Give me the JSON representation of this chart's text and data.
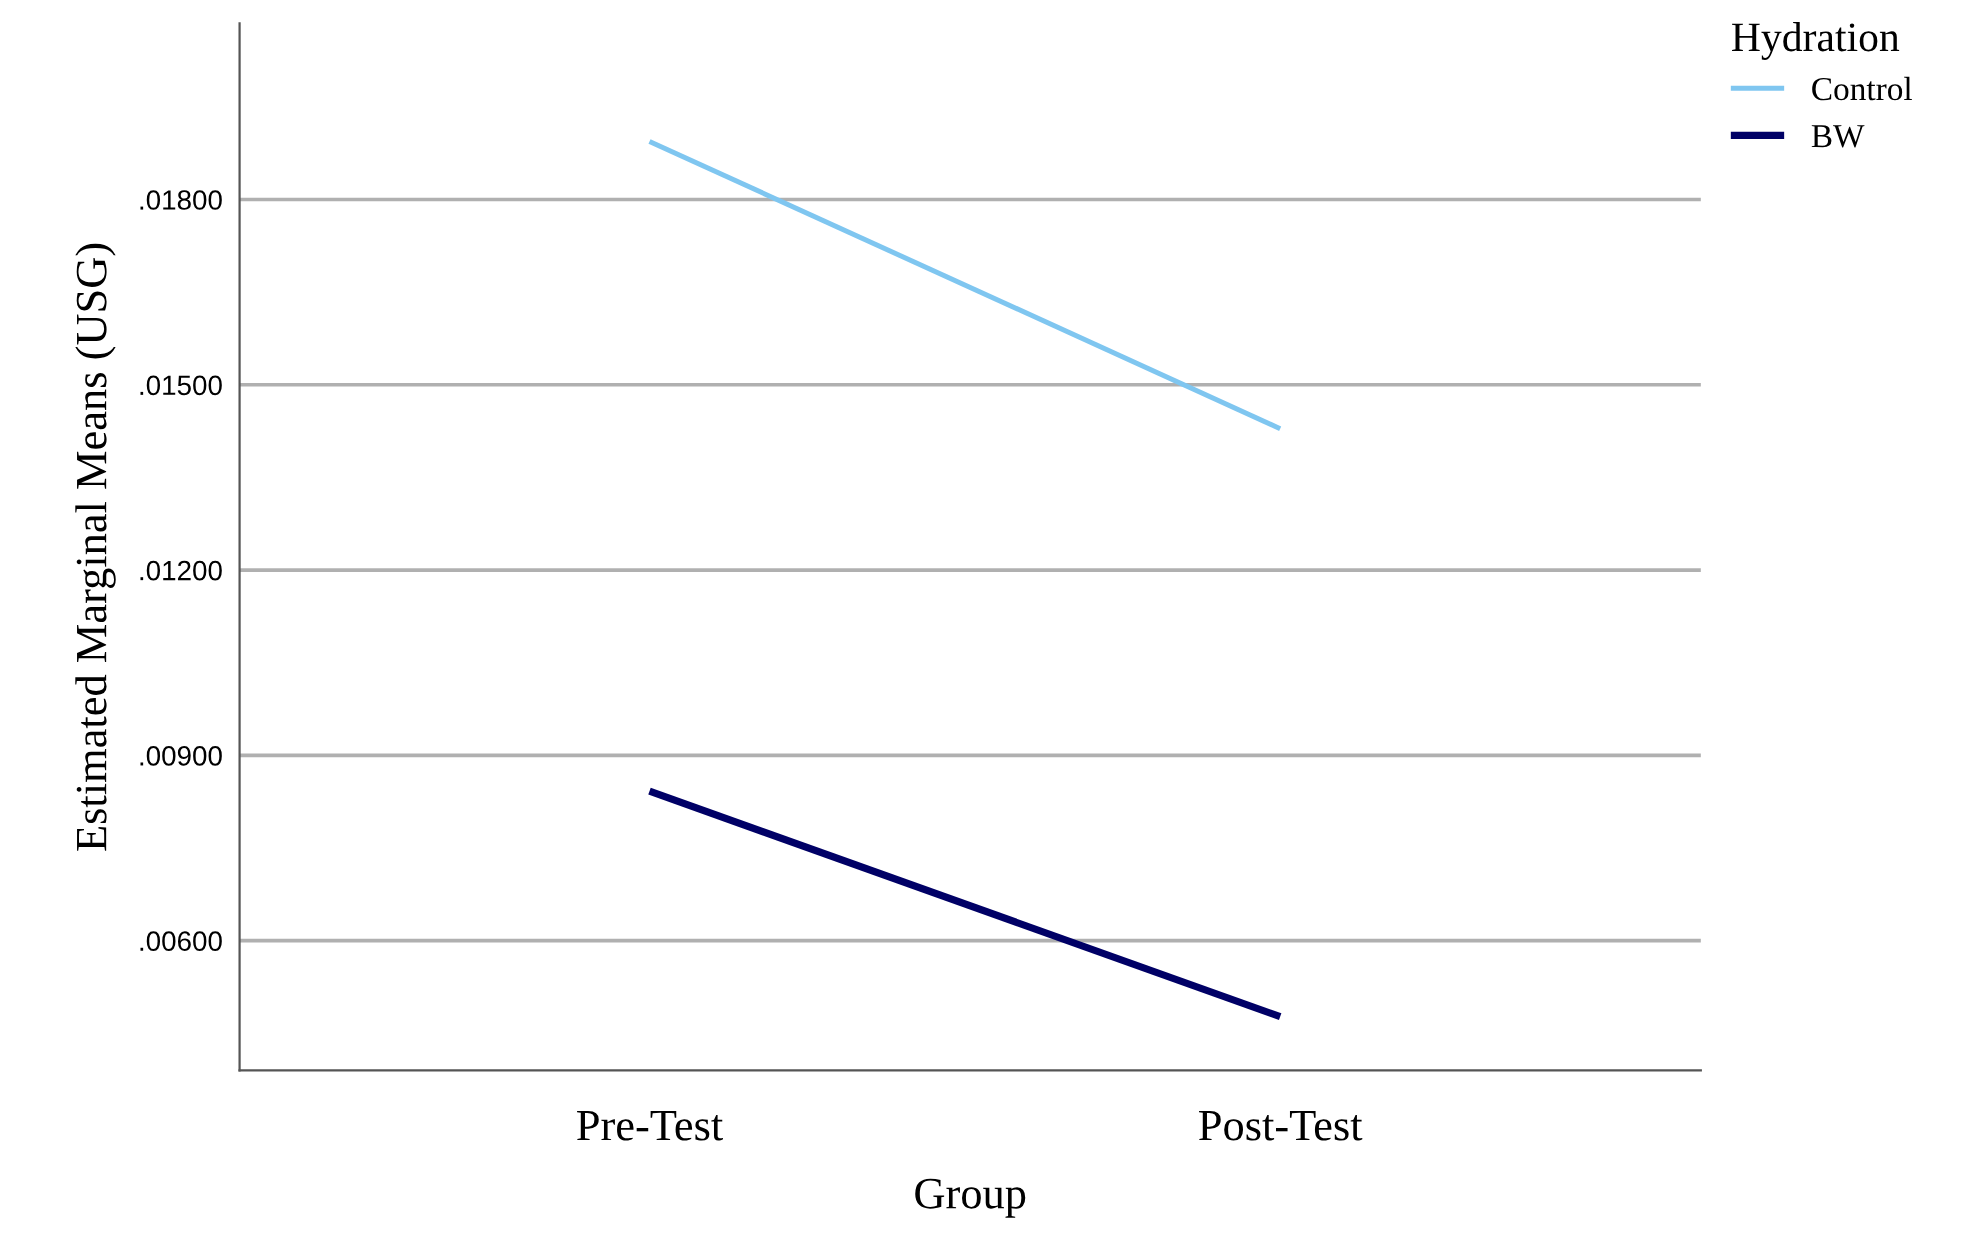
{
  "chart_data": {
    "type": "line",
    "xlabel": "Group",
    "ylabel": "Estimated Marginal Means (USG)",
    "legend_title": "Hydration",
    "categories": [
      "Pre-Test",
      "Post-Test"
    ],
    "series": [
      {
        "name": "Control",
        "color": "#7fc6f0",
        "values": [
          0.01894,
          0.01429
        ]
      },
      {
        "name": "BW",
        "color": "#000066",
        "values": [
          0.00842,
          0.00477
        ]
      }
    ],
    "ylim": [
      0.0039,
      0.02085
    ],
    "yticks": [
      {
        "value": 0.006,
        "label": ".00600"
      },
      {
        "value": 0.009,
        "label": ".00900"
      },
      {
        "value": 0.012,
        "label": ".01200"
      },
      {
        "value": 0.015,
        "label": ".01500"
      },
      {
        "value": 0.018,
        "label": ".01800"
      }
    ],
    "grid": "y",
    "legend": "top right",
    "marker": "none",
    "line_style": "solid"
  }
}
